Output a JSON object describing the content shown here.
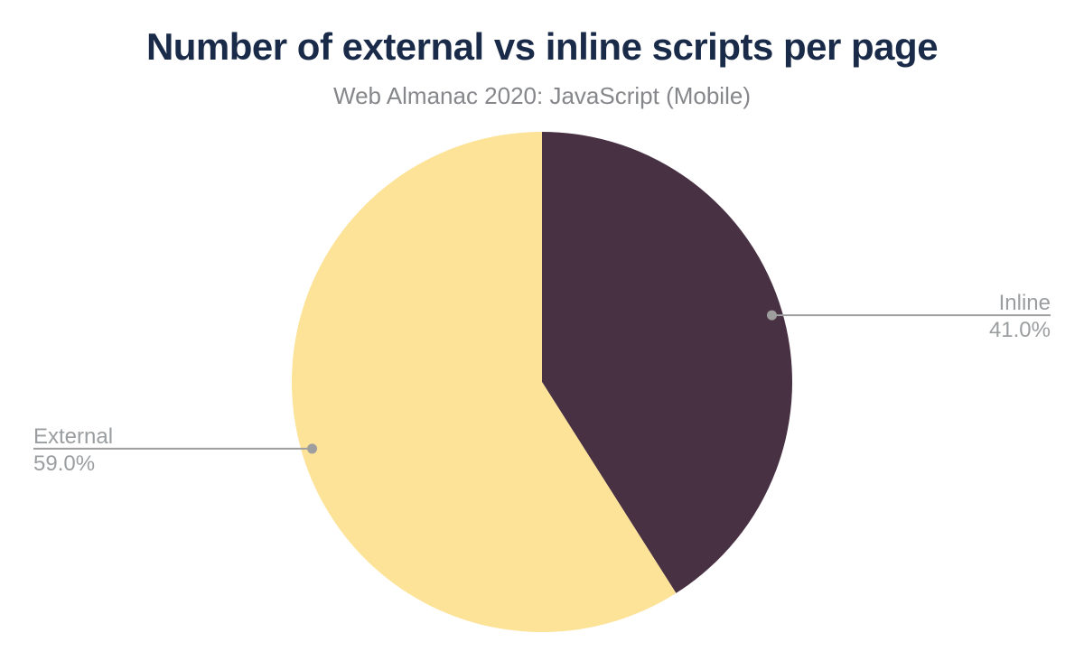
{
  "chart_data": {
    "type": "pie",
    "title": "Number of external vs inline scripts per page",
    "subtitle": "Web Almanac 2020: JavaScript (Mobile)",
    "unit": "percent",
    "direction": "clockwise",
    "start_angle_deg": 0,
    "slices": [
      {
        "label": "Inline",
        "value": 41.0,
        "value_label": "41.0%",
        "color": "#493144"
      },
      {
        "label": "External",
        "value": 59.0,
        "value_label": "59.0%",
        "color": "#FDE398"
      }
    ],
    "legend_position": "outside-callout-labels",
    "background_color": "#FFFFFF"
  },
  "colors": {
    "title": "#1A2B49",
    "subtitle": "#85878A",
    "callout_label": "#9B9EA0",
    "callout_line": "#9E9E9E"
  }
}
